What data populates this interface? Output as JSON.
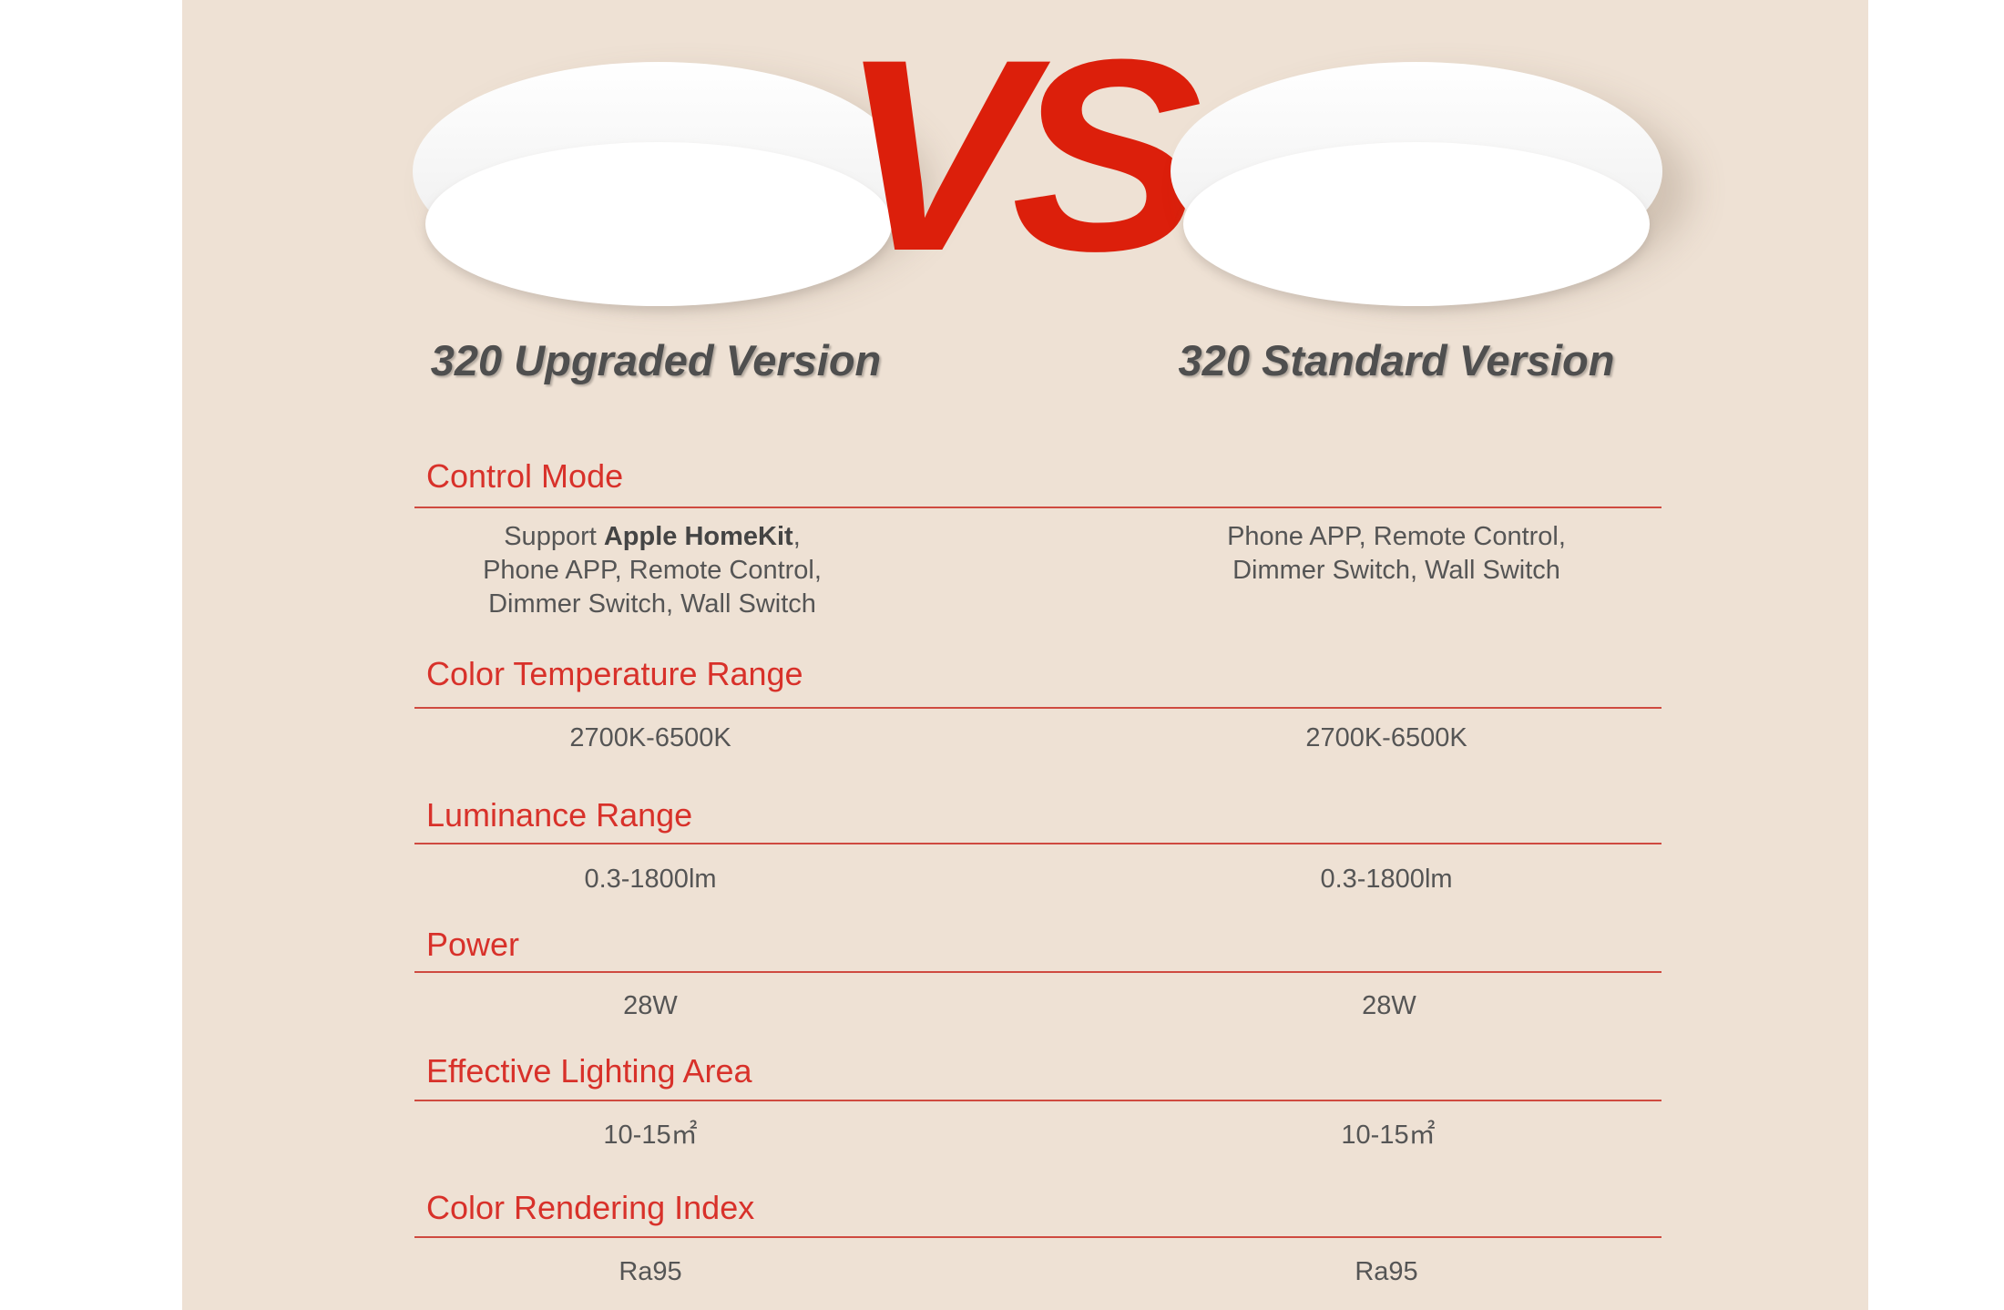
{
  "header": {
    "vs_label": "VS",
    "left_title": "320 Upgraded Version",
    "right_title": "320 Standard Version"
  },
  "colors": {
    "accent": "#d8312a",
    "vs": "#dc1f0b",
    "background": "#eee1d4"
  },
  "sections": [
    {
      "heading": "Control Mode",
      "left": {
        "prefix": "Support ",
        "bold": "Apple HomeKit",
        "suffix": ",",
        "line2": "Phone APP, Remote Control,",
        "line3": "Dimmer Switch, Wall Switch"
      },
      "right": {
        "line1": "Phone APP, Remote Control,",
        "line2": "Dimmer Switch, Wall Switch"
      }
    },
    {
      "heading": "Color Temperature Range",
      "left": "2700K-6500K",
      "right": "2700K-6500K"
    },
    {
      "heading": "Luminance Range",
      "left": "0.3-1800lm",
      "right": "0.3-1800lm"
    },
    {
      "heading": "Power",
      "left": "28W",
      "right": "28W"
    },
    {
      "heading": "Effective Lighting Area",
      "left": "10-15㎡",
      "right": "10-15㎡"
    },
    {
      "heading": "Color Rendering Index",
      "left": "Ra95",
      "right": "Ra95"
    }
  ]
}
